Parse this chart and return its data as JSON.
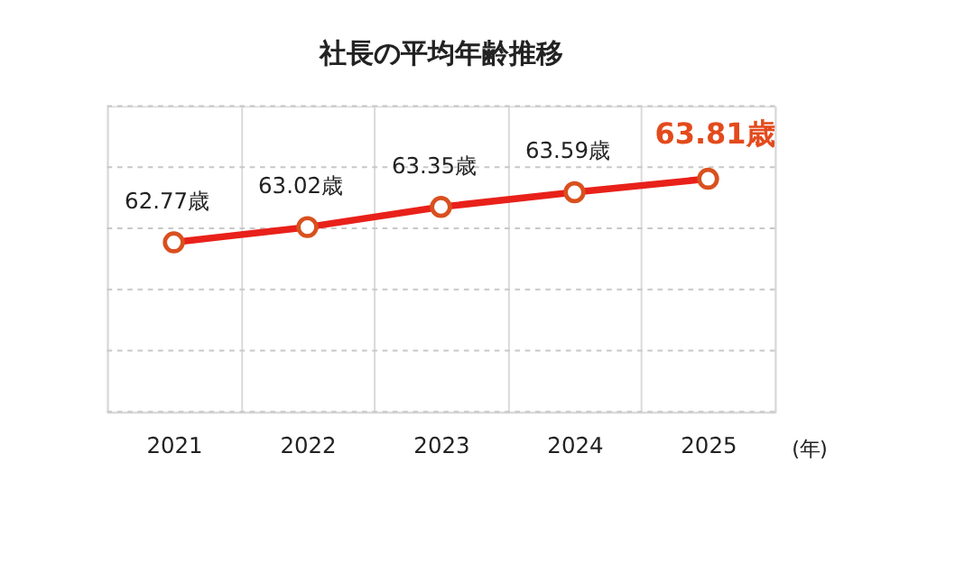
{
  "chart_data": {
    "type": "line",
    "title": "社長の平均年齢推移",
    "xlabel": "(年)",
    "categories": [
      "2021",
      "2022",
      "2023",
      "2024",
      "2025"
    ],
    "series": [
      {
        "color": "#e8211a",
        "values": [
          62.77,
          63.02,
          63.35,
          63.59,
          63.81
        ],
        "value_labels": [
          "62.77歳",
          "63.02歳",
          "63.35歳",
          "63.59歳",
          "63.81歳"
        ]
      }
    ],
    "ylim": [
      60,
      65
    ],
    "yticks": [
      {
        "value": 60,
        "label": null
      },
      {
        "value": 61,
        "label": null
      },
      {
        "value": 62,
        "label": null
      },
      {
        "value": 63,
        "label": null
      },
      {
        "value": 64,
        "label": null
      },
      {
        "value": 65,
        "label": null
      }
    ],
    "tick_labels": "x",
    "grid": true,
    "marker": "circle",
    "line_style": "solid"
  }
}
